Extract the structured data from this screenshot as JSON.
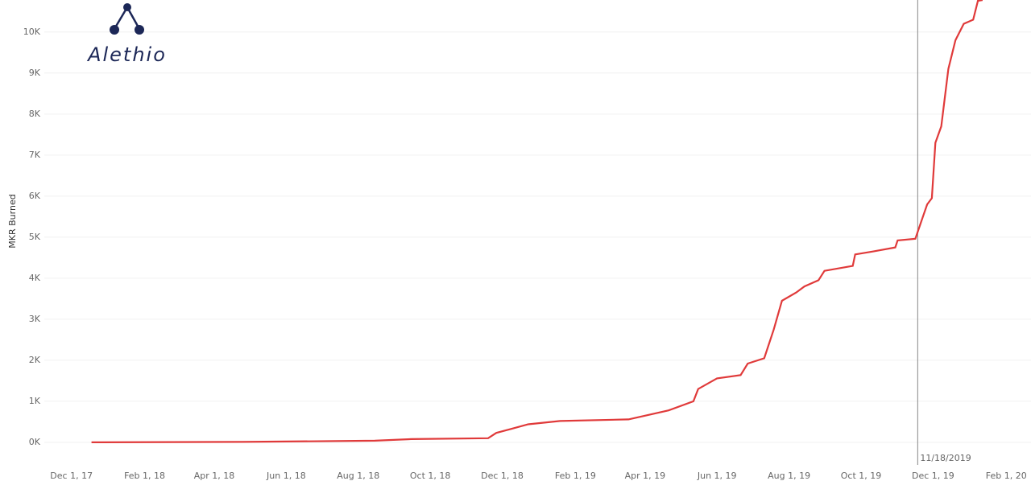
{
  "chart_data": {
    "type": "line",
    "logo": "Alethio",
    "ylabel": "MKR Burned",
    "x": [
      "2017-12-18",
      "2018-04-25",
      "2018-08-15",
      "2018-09-15",
      "2018-11-19",
      "2018-11-26",
      "2018-12-09",
      "2018-12-23",
      "2019-01-19",
      "2019-03-18",
      "2019-04-01",
      "2019-04-21",
      "2019-05-12",
      "2019-05-16",
      "2019-06-01",
      "2019-06-21",
      "2019-06-27",
      "2019-07-11",
      "2019-07-19",
      "2019-07-26",
      "2019-08-07",
      "2019-08-14",
      "2019-08-26",
      "2019-08-31",
      "2019-09-24",
      "2019-09-26",
      "2019-10-11",
      "2019-10-30",
      "2019-11-01",
      "2019-11-16",
      "2019-11-23",
      "2019-11-26",
      "2019-11-30",
      "2019-12-03",
      "2019-12-08",
      "2019-12-14",
      "2019-12-20",
      "2019-12-27",
      "2020-01-04",
      "2020-01-08",
      "2020-01-12"
    ],
    "series": [
      {
        "name": "MKR Burned",
        "color": "#e03a3a",
        "values": [
          0,
          10,
          40,
          80,
          100,
          230,
          330,
          440,
          520,
          560,
          650,
          780,
          1000,
          1300,
          1560,
          1640,
          1920,
          2050,
          2750,
          3450,
          3650,
          3800,
          3950,
          4180,
          4300,
          4580,
          4650,
          4750,
          4920,
          4960,
          5550,
          5800,
          5950,
          7300,
          7700,
          9100,
          9800,
          10200,
          10300,
          10760,
          10780
        ]
      }
    ],
    "xlim": [
      "2017-11-08",
      "2020-02-22"
    ],
    "xticks": [
      {
        "value": "2017-12-01",
        "label": "Dec 1, 17"
      },
      {
        "value": "2018-02-01",
        "label": "Feb 1, 18"
      },
      {
        "value": "2018-04-01",
        "label": "Apr 1, 18"
      },
      {
        "value": "2018-06-01",
        "label": "Jun 1, 18"
      },
      {
        "value": "2018-08-01",
        "label": "Aug 1, 18"
      },
      {
        "value": "2018-10-01",
        "label": "Oct 1, 18"
      },
      {
        "value": "2018-12-01",
        "label": "Dec 1, 18"
      },
      {
        "value": "2019-02-01",
        "label": "Feb 1, 19"
      },
      {
        "value": "2019-04-01",
        "label": "Apr 1, 19"
      },
      {
        "value": "2019-06-01",
        "label": "Jun 1, 19"
      },
      {
        "value": "2019-08-01",
        "label": "Aug 1, 19"
      },
      {
        "value": "2019-10-01",
        "label": "Oct 1, 19"
      },
      {
        "value": "2019-12-01",
        "label": "Dec 1, 19"
      },
      {
        "value": "2020-02-01",
        "label": "Feb 1, 20"
      }
    ],
    "ylim": [
      -550,
      10780
    ],
    "yticks": [
      {
        "value": 0,
        "label": "0K"
      },
      {
        "value": 1000,
        "label": "1K"
      },
      {
        "value": 2000,
        "label": "2K"
      },
      {
        "value": 3000,
        "label": "3K"
      },
      {
        "value": 4000,
        "label": "4K"
      },
      {
        "value": 5000,
        "label": "5K"
      },
      {
        "value": 6000,
        "label": "6K"
      },
      {
        "value": 7000,
        "label": "7K"
      },
      {
        "value": 8000,
        "label": "8K"
      },
      {
        "value": 9000,
        "label": "9K"
      },
      {
        "value": 10000,
        "label": "10K"
      }
    ],
    "grid": true,
    "reference_line": {
      "x": "2019-11-18",
      "label": "11/18/2019"
    }
  }
}
